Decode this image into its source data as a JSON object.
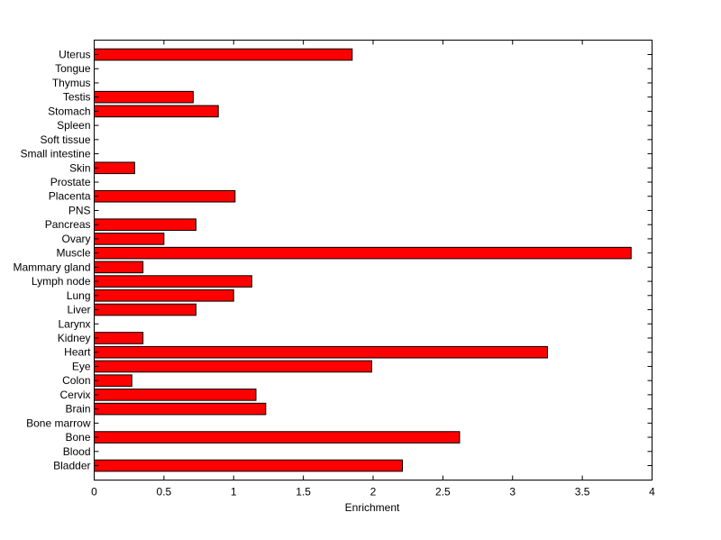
{
  "chart_data": {
    "type": "bar",
    "orientation": "horizontal",
    "xlabel": "Enrichment",
    "ylabel": "",
    "title": "",
    "xlim": [
      0,
      4
    ],
    "xticks": [
      0,
      0.5,
      1,
      1.5,
      2,
      2.5,
      3,
      3.5,
      4
    ],
    "xtick_labels": [
      "0",
      "0.5",
      "1",
      "1.5",
      "2",
      "2.5",
      "3",
      "3.5",
      "4"
    ],
    "bar_color": "#ff0000",
    "grid": false,
    "categories": [
      "Bladder",
      "Blood",
      "Bone",
      "Bone marrow",
      "Brain",
      "Cervix",
      "Colon",
      "Eye",
      "Heart",
      "Kidney",
      "Larynx",
      "Liver",
      "Lung",
      "Lymph node",
      "Mammary gland",
      "Muscle",
      "Ovary",
      "Pancreas",
      "PNS",
      "Placenta",
      "Prostate",
      "Skin",
      "Small intestine",
      "Soft tissue",
      "Spleen",
      "Stomach",
      "Testis",
      "Thymus",
      "Tongue",
      "Uterus"
    ],
    "values": [
      2.21,
      0,
      2.62,
      0,
      1.23,
      1.16,
      0.27,
      1.99,
      3.25,
      0.35,
      0,
      0.73,
      1.0,
      1.13,
      0.35,
      3.85,
      0.5,
      0.73,
      0,
      1.01,
      0,
      0.29,
      0,
      0,
      0,
      0.89,
      0.71,
      0,
      0,
      1.85
    ]
  }
}
